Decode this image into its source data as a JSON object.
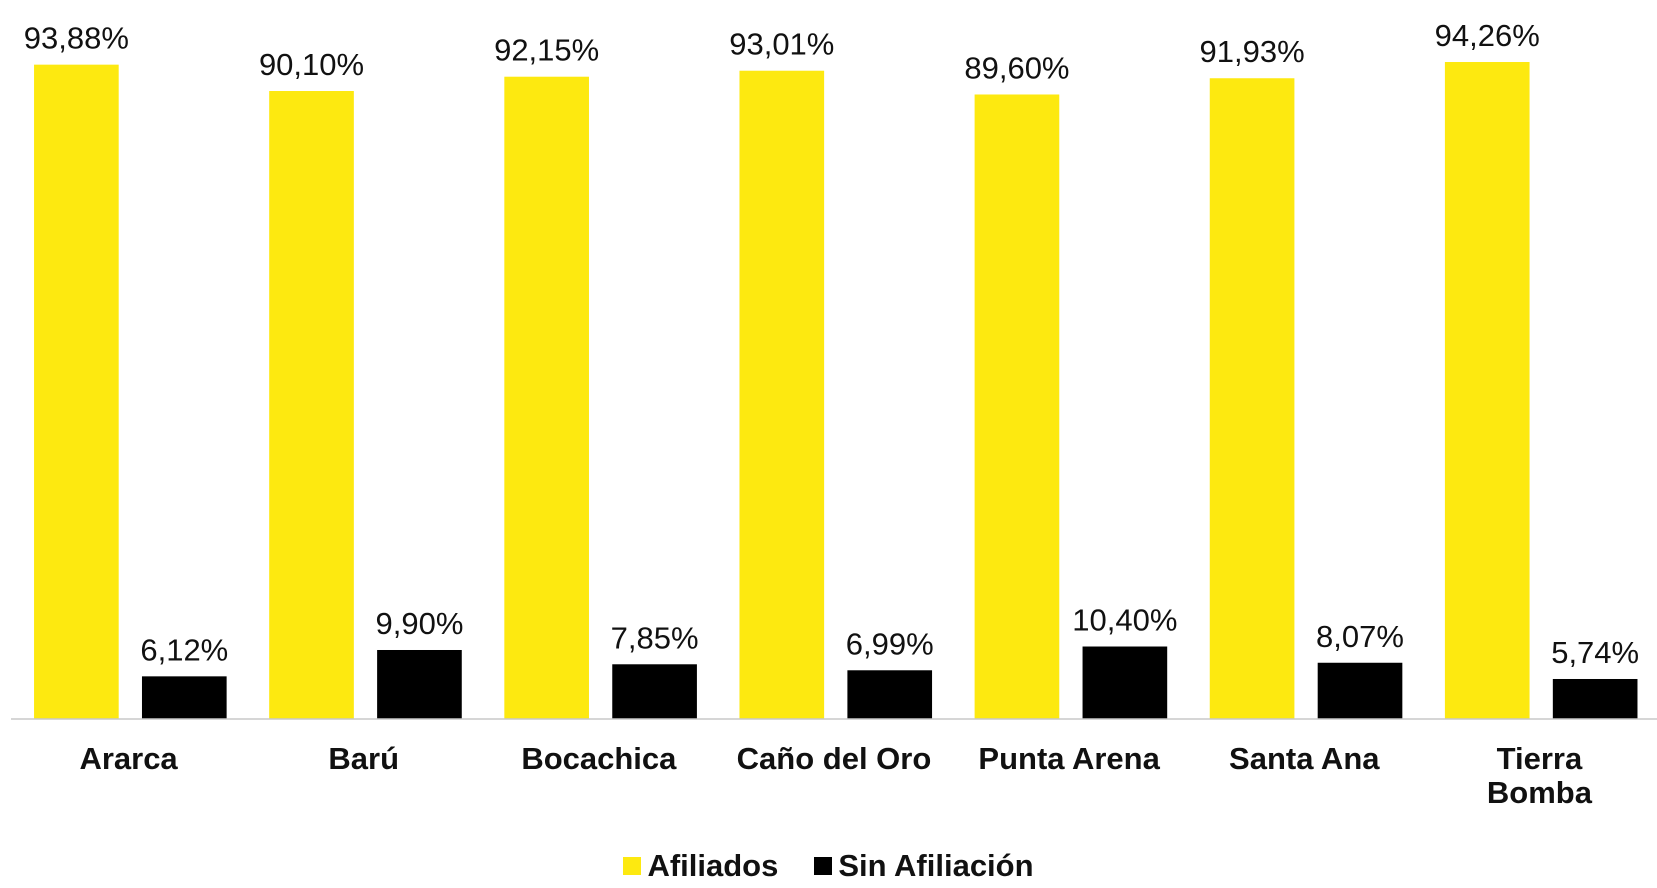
{
  "chart_data": {
    "type": "bar",
    "categories": [
      "Ararca",
      "Barú",
      "Bocachica",
      "Caño del Oro",
      "Punta Arena",
      "Santa Ana",
      "Tierra\nBomba"
    ],
    "series": [
      {
        "name": "Afiliados",
        "color": "#fde910",
        "values": [
          93.88,
          90.1,
          92.15,
          93.01,
          89.6,
          91.93,
          94.26
        ],
        "value_labels": [
          "93,88%",
          "90,10%",
          "92,15%",
          "93,01%",
          "89,60%",
          "91,93%",
          "94,26%"
        ]
      },
      {
        "name": "Sin Afiliación",
        "color": "#000000",
        "values": [
          6.12,
          9.9,
          7.85,
          6.99,
          10.4,
          8.07,
          5.74
        ],
        "value_labels": [
          "6,12%",
          "9,90%",
          "7,85%",
          "6,99%",
          "10,40%",
          "8,07%",
          "5,74%"
        ]
      }
    ],
    "ylim": [
      0,
      100
    ],
    "legend": "bottom"
  }
}
